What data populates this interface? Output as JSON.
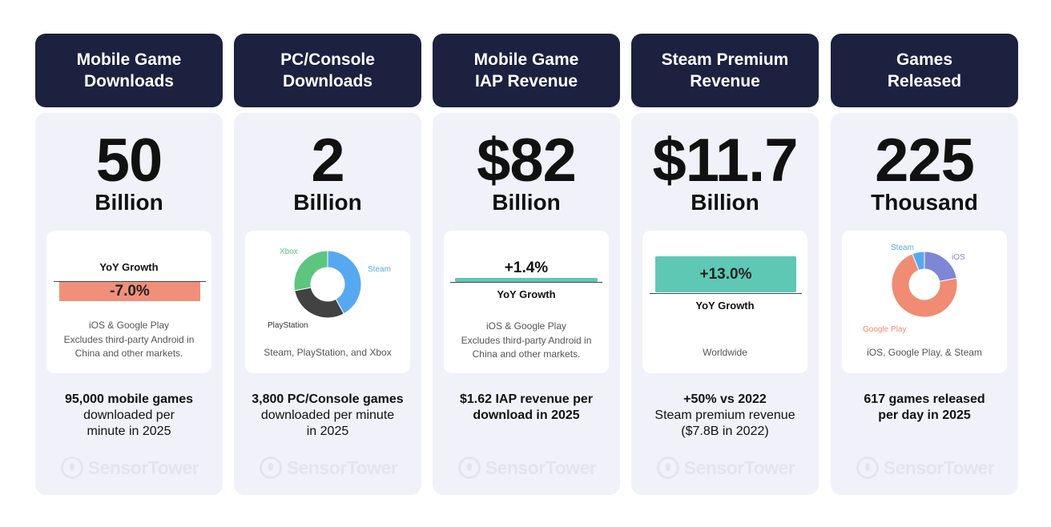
{
  "colors": {
    "header_bg": "#1c2140",
    "panel_bg": "#f1f2f9",
    "negative": "#f0907a",
    "positive": "#5ec8b4",
    "steam": "#56a9f0",
    "playstation": "#424242",
    "xbox": "#5cc580",
    "google_play": "#ef8c73",
    "ios": "#7e87d6",
    "steam_small": "#56a9f0"
  },
  "watermark": "SensorTower",
  "columns": [
    {
      "header": [
        "Mobile Game",
        "Downloads"
      ],
      "big": "50",
      "unit": "Billion",
      "card": {
        "kind": "yoy_bar",
        "label": "YoY Growth",
        "value_text": "-7.0%",
        "value": -7.0,
        "note": [
          "iOS & Google Play",
          "Excludes third-party Android in",
          "China and other markets."
        ]
      },
      "footer": {
        "bold": [
          "95,000 mobile games"
        ],
        "regular": [
          "downloaded per",
          "minute in 2025"
        ]
      }
    },
    {
      "header": [
        "PC/Console",
        "Downloads"
      ],
      "big": "2",
      "unit": "Billion",
      "card": {
        "kind": "donut",
        "labels": [
          "Xbox",
          "Steam",
          "PlayStation"
        ],
        "note": [
          "Steam, PlayStation, and Xbox"
        ]
      },
      "footer": {
        "bold": [
          "3,800 PC/Console games"
        ],
        "regular": [
          "downloaded per minute",
          "in 2025"
        ]
      }
    },
    {
      "header": [
        "Mobile Game",
        "IAP Revenue"
      ],
      "big": "$82",
      "unit": "Billion",
      "card": {
        "kind": "yoy_bar",
        "label": "YoY Growth",
        "value_text": "+1.4%",
        "value": 1.4,
        "note": [
          "iOS & Google Play",
          "Excludes third-party Android in",
          "China and other markets."
        ]
      },
      "footer": {
        "bold": [
          "$1.62 IAP revenue per",
          "download in 2025"
        ],
        "regular": []
      }
    },
    {
      "header": [
        "Steam Premium",
        "Revenue"
      ],
      "big": "$11.7",
      "unit": "Billion",
      "card": {
        "kind": "yoy_bar",
        "label": "YoY Growth",
        "value_text": "+13.0%",
        "value": 13.0,
        "note": [
          "Worldwide"
        ]
      },
      "footer": {
        "bold": [
          "+50% vs 2022"
        ],
        "regular": [
          "Steam premium revenue",
          "($7.8B in 2022)"
        ]
      }
    },
    {
      "header": [
        "Games",
        "Released"
      ],
      "big": "225",
      "unit": "Thousand",
      "card": {
        "kind": "donut",
        "labels": [
          "Steam",
          "iOS",
          "Google Play"
        ],
        "note": [
          "iOS, Google Play, & Steam"
        ]
      },
      "footer": {
        "bold": [
          "617 games released",
          "per day in 2025"
        ],
        "regular": []
      }
    }
  ],
  "chart_data": [
    {
      "type": "bar",
      "title": "YoY Growth",
      "categories": [
        "Mobile Game Downloads"
      ],
      "values": [
        -7.0
      ],
      "unit": "%"
    },
    {
      "type": "pie",
      "title": "",
      "categories": [
        "Steam",
        "PlayStation",
        "Xbox"
      ],
      "values": [
        42,
        30,
        28
      ],
      "unit": "%"
    },
    {
      "type": "bar",
      "title": "YoY Growth",
      "categories": [
        "Mobile Game IAP Revenue"
      ],
      "values": [
        1.4
      ],
      "unit": "%"
    },
    {
      "type": "bar",
      "title": "YoY Growth",
      "categories": [
        "Steam Premium Revenue"
      ],
      "values": [
        13.0
      ],
      "unit": "%"
    },
    {
      "type": "pie",
      "title": "",
      "categories": [
        "iOS",
        "Google Play",
        "Steam"
      ],
      "values": [
        22,
        72,
        6
      ],
      "unit": "%"
    }
  ]
}
